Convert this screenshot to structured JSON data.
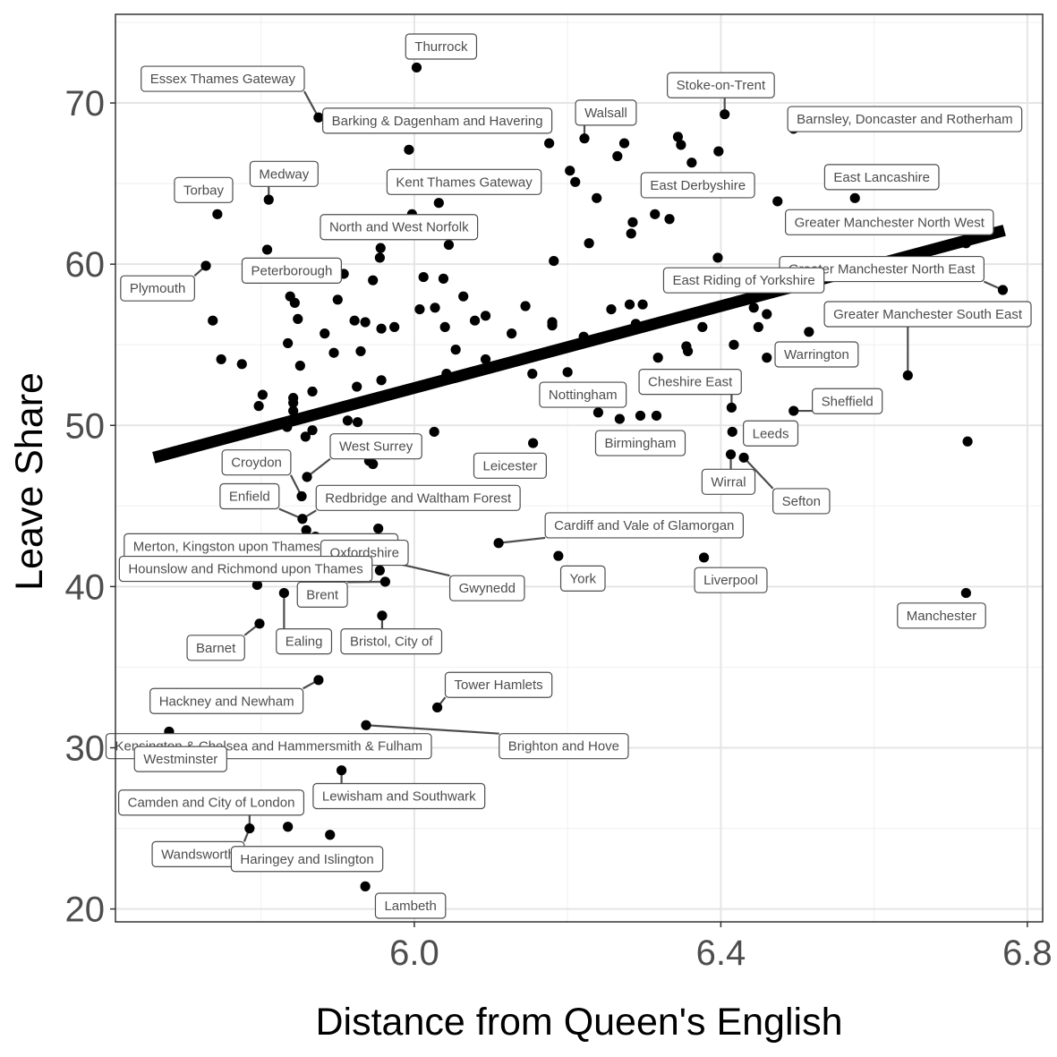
{
  "chart_data": {
    "type": "scatter",
    "title": "",
    "xlabel": "Distance from Queen's English",
    "ylabel": "Leave Share",
    "xlim": [
      5.61,
      6.82
    ],
    "ylim": [
      19.2,
      75.5
    ],
    "x_ticks": [
      6.0,
      6.4,
      6.8
    ],
    "x_tick_labels": [
      "6.0",
      "6.4",
      "6.8"
    ],
    "y_ticks": [
      20,
      30,
      40,
      50,
      60,
      70
    ],
    "y_tick_labels": [
      "20",
      "30",
      "40",
      "50",
      "60",
      "70"
    ],
    "grid": true,
    "legend": "none",
    "trend_line": {
      "x": [
        5.66,
        6.77
      ],
      "y": [
        48.0,
        62.1
      ]
    },
    "points": [
      {
        "x": 6.003,
        "y": 72.2
      },
      {
        "x": 5.875,
        "y": 69.1
      },
      {
        "x": 6.405,
        "y": 69.3
      },
      {
        "x": 6.495,
        "y": 68.4
      },
      {
        "x": 6.344,
        "y": 67.9
      },
      {
        "x": 6.348,
        "y": 67.4
      },
      {
        "x": 6.362,
        "y": 66.3
      },
      {
        "x": 6.397,
        "y": 67.0
      },
      {
        "x": 6.176,
        "y": 67.5
      },
      {
        "x": 6.222,
        "y": 67.8
      },
      {
        "x": 6.274,
        "y": 67.5
      },
      {
        "x": 6.265,
        "y": 66.7
      },
      {
        "x": 5.993,
        "y": 67.1
      },
      {
        "x": 6.203,
        "y": 65.8
      },
      {
        "x": 6.21,
        "y": 65.1
      },
      {
        "x": 6.238,
        "y": 64.1
      },
      {
        "x": 6.575,
        "y": 64.1
      },
      {
        "x": 6.474,
        "y": 63.9
      },
      {
        "x": 5.743,
        "y": 63.1
      },
      {
        "x": 5.81,
        "y": 64.0
      },
      {
        "x": 6.032,
        "y": 63.8
      },
      {
        "x": 5.997,
        "y": 63.1
      },
      {
        "x": 6.314,
        "y": 63.1
      },
      {
        "x": 6.333,
        "y": 62.8
      },
      {
        "x": 6.285,
        "y": 62.6
      },
      {
        "x": 6.283,
        "y": 61.9
      },
      {
        "x": 6.228,
        "y": 61.3
      },
      {
        "x": 5.956,
        "y": 61.0
      },
      {
        "x": 6.045,
        "y": 61.2
      },
      {
        "x": 5.808,
        "y": 60.9
      },
      {
        "x": 5.955,
        "y": 60.4
      },
      {
        "x": 6.396,
        "y": 60.4
      },
      {
        "x": 6.182,
        "y": 60.2
      },
      {
        "x": 5.728,
        "y": 59.9
      },
      {
        "x": 6.012,
        "y": 59.2
      },
      {
        "x": 6.038,
        "y": 59.1
      },
      {
        "x": 5.908,
        "y": 59.4
      },
      {
        "x": 5.946,
        "y": 59.0
      },
      {
        "x": 6.72,
        "y": 61.3
      },
      {
        "x": 6.768,
        "y": 58.4
      },
      {
        "x": 5.838,
        "y": 58.0
      },
      {
        "x": 5.844,
        "y": 57.6
      },
      {
        "x": 5.9,
        "y": 57.8
      },
      {
        "x": 6.064,
        "y": 58.0
      },
      {
        "x": 6.027,
        "y": 57.3
      },
      {
        "x": 6.007,
        "y": 57.2
      },
      {
        "x": 6.145,
        "y": 57.4
      },
      {
        "x": 6.257,
        "y": 57.2
      },
      {
        "x": 6.281,
        "y": 57.5
      },
      {
        "x": 6.298,
        "y": 57.5
      },
      {
        "x": 6.443,
        "y": 57.3
      },
      {
        "x": 6.46,
        "y": 56.9
      },
      {
        "x": 6.093,
        "y": 56.8
      },
      {
        "x": 6.079,
        "y": 56.5
      },
      {
        "x": 5.848,
        "y": 56.6
      },
      {
        "x": 5.922,
        "y": 56.5
      },
      {
        "x": 5.936,
        "y": 56.4
      },
      {
        "x": 5.957,
        "y": 56.0
      },
      {
        "x": 5.974,
        "y": 56.1
      },
      {
        "x": 6.04,
        "y": 56.1
      },
      {
        "x": 6.18,
        "y": 56.2
      },
      {
        "x": 6.18,
        "y": 56.4
      },
      {
        "x": 6.289,
        "y": 56.3
      },
      {
        "x": 6.376,
        "y": 56.1
      },
      {
        "x": 6.449,
        "y": 56.1
      },
      {
        "x": 5.883,
        "y": 55.7
      },
      {
        "x": 6.127,
        "y": 55.7
      },
      {
        "x": 6.221,
        "y": 55.5
      },
      {
        "x": 6.515,
        "y": 55.8
      },
      {
        "x": 5.737,
        "y": 56.5
      },
      {
        "x": 5.835,
        "y": 55.1
      },
      {
        "x": 6.355,
        "y": 54.9
      },
      {
        "x": 6.417,
        "y": 55.0
      },
      {
        "x": 5.895,
        "y": 54.5
      },
      {
        "x": 5.93,
        "y": 54.6
      },
      {
        "x": 6.054,
        "y": 54.7
      },
      {
        "x": 6.357,
        "y": 54.6
      },
      {
        "x": 5.748,
        "y": 54.1
      },
      {
        "x": 5.775,
        "y": 53.8
      },
      {
        "x": 5.851,
        "y": 53.7
      },
      {
        "x": 6.093,
        "y": 54.1
      },
      {
        "x": 6.143,
        "y": 54.1
      },
      {
        "x": 6.318,
        "y": 54.2
      },
      {
        "x": 6.46,
        "y": 54.2
      },
      {
        "x": 6.042,
        "y": 53.2
      },
      {
        "x": 6.154,
        "y": 53.2
      },
      {
        "x": 6.2,
        "y": 53.3
      },
      {
        "x": 6.644,
        "y": 53.1
      },
      {
        "x": 5.957,
        "y": 52.8
      },
      {
        "x": 5.925,
        "y": 52.4
      },
      {
        "x": 5.867,
        "y": 52.1
      },
      {
        "x": 5.802,
        "y": 51.9
      },
      {
        "x": 5.842,
        "y": 51.7
      },
      {
        "x": 5.842,
        "y": 51.4
      },
      {
        "x": 5.797,
        "y": 51.2
      },
      {
        "x": 5.842,
        "y": 50.9
      },
      {
        "x": 6.414,
        "y": 51.1
      },
      {
        "x": 6.495,
        "y": 50.9
      },
      {
        "x": 6.24,
        "y": 50.8
      },
      {
        "x": 6.268,
        "y": 50.4
      },
      {
        "x": 6.295,
        "y": 50.6
      },
      {
        "x": 6.316,
        "y": 50.6
      },
      {
        "x": 5.913,
        "y": 50.3
      },
      {
        "x": 5.926,
        "y": 50.2
      },
      {
        "x": 5.834,
        "y": 49.9
      },
      {
        "x": 5.867,
        "y": 49.7
      },
      {
        "x": 5.858,
        "y": 49.3
      },
      {
        "x": 6.026,
        "y": 49.6
      },
      {
        "x": 6.415,
        "y": 49.6
      },
      {
        "x": 6.155,
        "y": 48.9
      },
      {
        "x": 6.722,
        "y": 49.0
      },
      {
        "x": 6.413,
        "y": 48.2
      },
      {
        "x": 6.43,
        "y": 48.0
      },
      {
        "x": 5.941,
        "y": 47.8
      },
      {
        "x": 5.946,
        "y": 47.6
      },
      {
        "x": 5.86,
        "y": 46.8
      },
      {
        "x": 5.853,
        "y": 45.6
      },
      {
        "x": 5.854,
        "y": 44.2
      },
      {
        "x": 5.859,
        "y": 43.5
      },
      {
        "x": 5.871,
        "y": 43.1
      },
      {
        "x": 5.953,
        "y": 43.6
      },
      {
        "x": 6.11,
        "y": 42.7
      },
      {
        "x": 6.188,
        "y": 41.9
      },
      {
        "x": 6.378,
        "y": 41.8
      },
      {
        "x": 5.955,
        "y": 41.0
      },
      {
        "x": 5.962,
        "y": 40.3
      },
      {
        "x": 5.795,
        "y": 40.1
      },
      {
        "x": 5.83,
        "y": 39.6
      },
      {
        "x": 6.72,
        "y": 39.6
      },
      {
        "x": 5.958,
        "y": 38.2
      },
      {
        "x": 5.798,
        "y": 37.7
      },
      {
        "x": 5.875,
        "y": 34.2
      },
      {
        "x": 6.03,
        "y": 32.5
      },
      {
        "x": 5.937,
        "y": 31.4
      },
      {
        "x": 5.68,
        "y": 31.0
      },
      {
        "x": 5.81,
        "y": 30.5
      },
      {
        "x": 5.905,
        "y": 28.6
      },
      {
        "x": 5.785,
        "y": 25.0
      },
      {
        "x": 5.835,
        "y": 25.1
      },
      {
        "x": 5.89,
        "y": 24.6
      },
      {
        "x": 5.936,
        "y": 21.4
      }
    ],
    "labels": [
      {
        "text": "Thurrock",
        "x": 6.035,
        "y": 73.5,
        "point": [
          6.003,
          72.2
        ]
      },
      {
        "text": "Essex Thames Gateway",
        "x": 5.75,
        "y": 71.5,
        "point": [
          5.875,
          69.1
        ]
      },
      {
        "text": "Stoke-on-Trent",
        "x": 6.4,
        "y": 71.1,
        "point": [
          6.405,
          69.3
        ]
      },
      {
        "text": "Barking & Dagenham and Havering",
        "x": 6.03,
        "y": 68.9,
        "point": [
          5.875,
          69.1
        ]
      },
      {
        "text": "Walsall",
        "x": 6.25,
        "y": 69.4,
        "point": [
          6.222,
          67.8
        ]
      },
      {
        "text": "Barnsley, Doncaster and Rotherham",
        "x": 6.64,
        "y": 69.0,
        "point": [
          6.495,
          68.4
        ]
      },
      {
        "text": "East Lancashire",
        "x": 6.61,
        "y": 65.4,
        "point": [
          6.575,
          64.1
        ]
      },
      {
        "text": "Medway",
        "x": 5.83,
        "y": 65.6,
        "point": [
          5.81,
          64.0
        ]
      },
      {
        "text": "Kent Thames Gateway",
        "x": 6.065,
        "y": 65.1,
        "point": [
          6.032,
          63.8
        ]
      },
      {
        "text": "Torbay",
        "x": 5.725,
        "y": 64.6,
        "point": [
          5.743,
          63.1
        ]
      },
      {
        "text": "East Derbyshire",
        "x": 6.37,
        "y": 64.9,
        "point": [
          6.362,
          66.3
        ]
      },
      {
        "text": "Greater Manchester North West",
        "x": 6.62,
        "y": 62.6,
        "point": [
          6.72,
          61.3
        ]
      },
      {
        "text": "North and West Norfolk",
        "x": 5.98,
        "y": 62.3,
        "point": [
          6.045,
          61.2
        ]
      },
      {
        "text": "Peterborough",
        "x": 5.84,
        "y": 59.6,
        "point": [
          5.908,
          59.4
        ]
      },
      {
        "text": "Greater Manchester North East",
        "x": 6.61,
        "y": 59.7,
        "point": [
          6.768,
          58.4
        ]
      },
      {
        "text": "Plymouth",
        "x": 5.665,
        "y": 58.5,
        "point": [
          5.728,
          59.9
        ]
      },
      {
        "text": "East Riding of Yorkshire",
        "x": 6.43,
        "y": 59.0,
        "point": [
          6.396,
          60.4
        ]
      },
      {
        "text": "Greater Manchester South East",
        "x": 6.67,
        "y": 56.9,
        "point": [
          6.644,
          53.1
        ]
      },
      {
        "text": "Warrington",
        "x": 6.525,
        "y": 54.4,
        "point": [
          6.46,
          54.2
        ]
      },
      {
        "text": "Cheshire East",
        "x": 6.36,
        "y": 52.7,
        "point": [
          6.414,
          51.1
        ]
      },
      {
        "text": "Nottingham",
        "x": 6.22,
        "y": 51.9,
        "point": [
          6.24,
          50.8
        ]
      },
      {
        "text": "Sheffield",
        "x": 6.565,
        "y": 51.5,
        "point": [
          6.495,
          50.9
        ]
      },
      {
        "text": "Birmingham",
        "x": 6.295,
        "y": 48.9,
        "point": [
          6.268,
          50.4
        ]
      },
      {
        "text": "Leeds",
        "x": 6.465,
        "y": 49.5,
        "point": [
          6.415,
          49.6
        ]
      },
      {
        "text": "West Surrey",
        "x": 5.95,
        "y": 48.7,
        "point": [
          5.86,
          46.8
        ]
      },
      {
        "text": "Croydon",
        "x": 5.794,
        "y": 47.7,
        "point": [
          5.853,
          45.6
        ]
      },
      {
        "text": "Leicester",
        "x": 6.125,
        "y": 47.5,
        "point": [
          6.155,
          48.9
        ]
      },
      {
        "text": "Wirral",
        "x": 6.41,
        "y": 46.5,
        "point": [
          6.413,
          48.2
        ]
      },
      {
        "text": "Redbridge and Waltham Forest",
        "x": 6.005,
        "y": 45.5,
        "point": [
          5.854,
          44.2
        ]
      },
      {
        "text": "Enfield",
        "x": 5.785,
        "y": 45.6,
        "point": [
          5.854,
          44.2
        ]
      },
      {
        "text": "Sefton",
        "x": 6.505,
        "y": 45.3,
        "point": [
          6.43,
          48.0
        ]
      },
      {
        "text": "Cardiff and Vale of Glamorgan",
        "x": 6.3,
        "y": 43.8,
        "point": [
          6.11,
          42.7
        ]
      },
      {
        "text": "Merton, Kingston upon Thames and Sutton",
        "x": 5.8,
        "y": 42.5,
        "point": [
          5.871,
          43.1
        ]
      },
      {
        "text": "Oxfordshire",
        "x": 5.935,
        "y": 42.1,
        "point": [
          5.953,
          43.6
        ]
      },
      {
        "text": "Hounslow and Richmond upon Thames",
        "x": 5.78,
        "y": 41.1,
        "point": [
          5.795,
          40.1
        ]
      },
      {
        "text": "York",
        "x": 6.22,
        "y": 40.5,
        "point": [
          6.188,
          41.9
        ]
      },
      {
        "text": "Liverpool",
        "x": 6.413,
        "y": 40.4,
        "point": [
          6.378,
          41.8
        ]
      },
      {
        "text": "Gwynedd",
        "x": 6.095,
        "y": 39.9,
        "point": [
          5.953,
          41.7
        ]
      },
      {
        "text": "Brent",
        "x": 5.88,
        "y": 39.5,
        "point": [
          5.962,
          40.3
        ]
      },
      {
        "text": "Manchester",
        "x": 6.688,
        "y": 38.2,
        "point": [
          6.72,
          39.6
        ]
      },
      {
        "text": "Ealing",
        "x": 5.856,
        "y": 36.6,
        "point": [
          5.83,
          39.6
        ]
      },
      {
        "text": "Bristol, City of",
        "x": 5.97,
        "y": 36.6,
        "point": [
          5.958,
          38.2
        ]
      },
      {
        "text": "Barnet",
        "x": 5.741,
        "y": 36.2,
        "point": [
          5.798,
          37.7
        ]
      },
      {
        "text": "Tower Hamlets",
        "x": 6.11,
        "y": 33.9,
        "point": [
          6.03,
          32.5
        ]
      },
      {
        "text": "Hackney and Newham",
        "x": 5.755,
        "y": 32.9,
        "point": [
          5.875,
          34.2
        ]
      },
      {
        "text": "Brighton and Hove",
        "x": 6.195,
        "y": 30.1,
        "point": [
          5.937,
          31.4
        ]
      },
      {
        "text": "Kensington & Chelsea and Hammersmith & Fulham",
        "x": 5.81,
        "y": 30.1,
        "point": [
          5.81,
          30.5
        ]
      },
      {
        "text": "Westminster",
        "x": 5.695,
        "y": 29.3,
        "point": [
          5.68,
          31.0
        ]
      },
      {
        "text": "Lewisham and Southwark",
        "x": 5.98,
        "y": 27.0,
        "point": [
          5.905,
          28.6
        ]
      },
      {
        "text": "Camden and City of London",
        "x": 5.735,
        "y": 26.6,
        "point": [
          5.785,
          25.0
        ]
      },
      {
        "text": "Wandsworth",
        "x": 5.718,
        "y": 23.4,
        "point": [
          5.785,
          25.0
        ]
      },
      {
        "text": "Haringey and Islington",
        "x": 5.86,
        "y": 23.1,
        "point": [
          5.89,
          24.6
        ]
      },
      {
        "text": "Lambeth",
        "x": 5.995,
        "y": 20.2,
        "point": [
          5.936,
          21.4
        ]
      }
    ]
  }
}
